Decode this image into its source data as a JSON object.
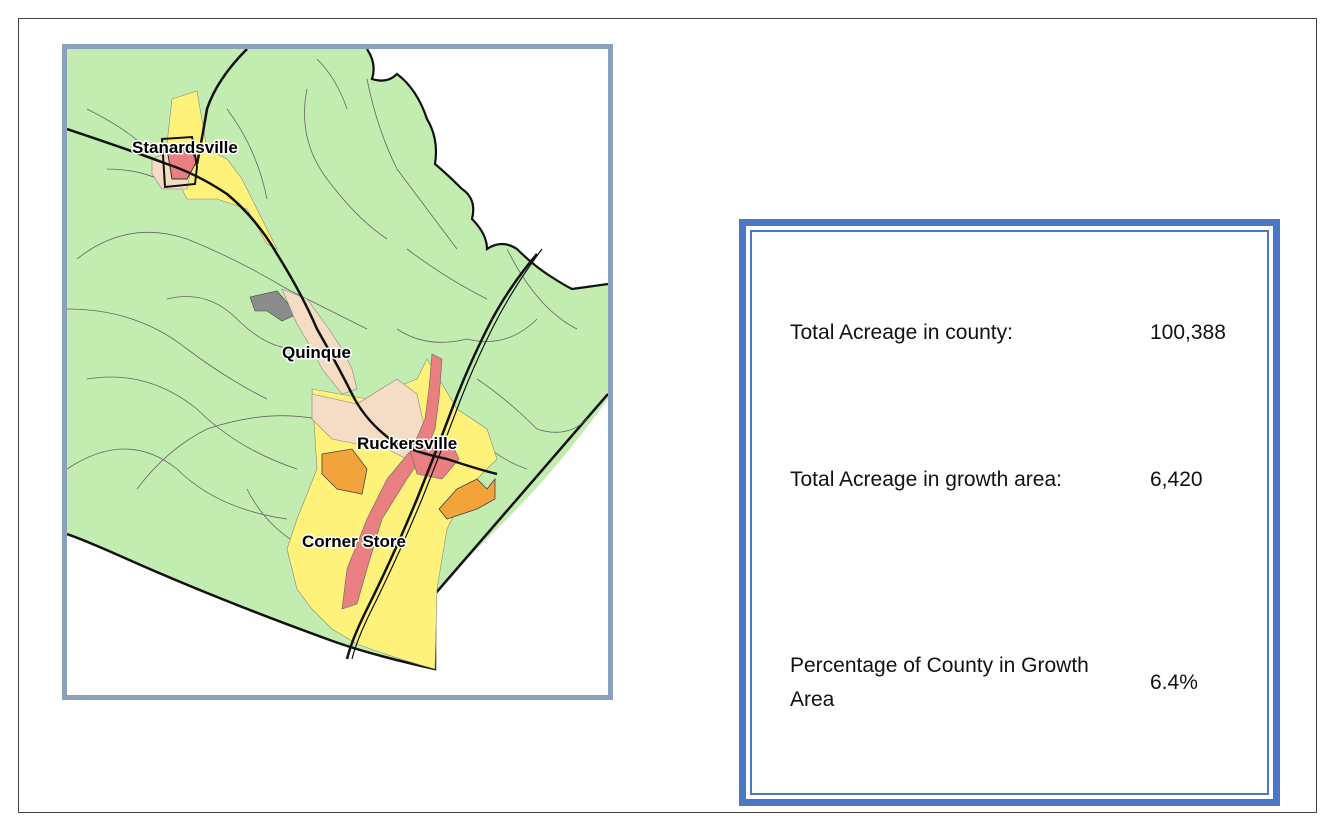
{
  "map": {
    "places": [
      {
        "name": "Stanardsville"
      },
      {
        "name": "Quinque"
      },
      {
        "name": "Ruckersville"
      },
      {
        "name": "Corner Store"
      }
    ],
    "colors": {
      "county": "#c2ecb0",
      "outside": "#ffffff",
      "residential": "#fff27a",
      "mixed_use": "#f5dcc4",
      "commercial": "#ea7f82",
      "industrial": "#f2a33a",
      "public": "#8c8c8c",
      "frame": "#8aa0bc"
    }
  },
  "stats": {
    "rows": [
      {
        "label": "Total Acreage in county:",
        "value": "100,388"
      },
      {
        "label": "Total Acreage in growth area:",
        "value": "6,420"
      },
      {
        "label": "Percentage of County in Growth Area",
        "value": "6.4%"
      }
    ],
    "border_color": "#4a78c4"
  }
}
